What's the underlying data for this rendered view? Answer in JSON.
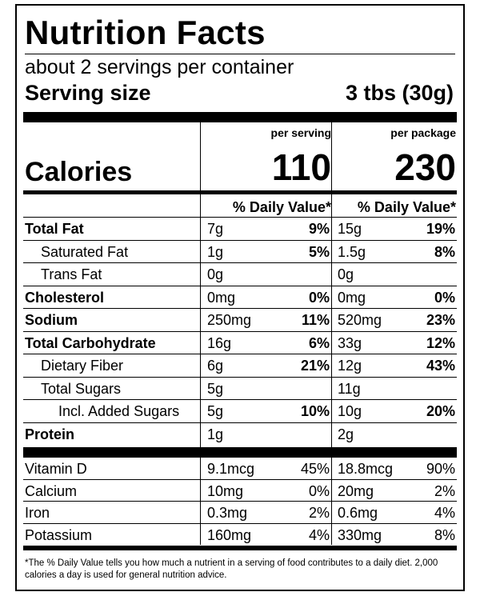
{
  "title": "Nutrition Facts",
  "servings_per_container": "about 2 servings per container",
  "serving_size_label": "Serving size",
  "serving_size_value": "3 tbs (30g)",
  "columns": {
    "per_serving": "per serving",
    "per_package": "per package"
  },
  "calories": {
    "label": "Calories",
    "per_serving": "110",
    "per_package": "230"
  },
  "daily_value_header": "% Daily Value*",
  "nutrients": [
    {
      "name": "Total Fat",
      "bold": true,
      "indent": 0,
      "serving_amount": "7g",
      "serving_pct": "9%",
      "package_amount": "15g",
      "package_pct": "19%"
    },
    {
      "name": "Saturated Fat",
      "bold": false,
      "indent": 1,
      "serving_amount": "1g",
      "serving_pct": "5%",
      "package_amount": "1.5g",
      "package_pct": "8%"
    },
    {
      "name": "Trans Fat",
      "bold": false,
      "indent": 1,
      "serving_amount": "0g",
      "serving_pct": "",
      "package_amount": "0g",
      "package_pct": ""
    },
    {
      "name": "Cholesterol",
      "bold": true,
      "indent": 0,
      "serving_amount": "0mg",
      "serving_pct": "0%",
      "package_amount": "0mg",
      "package_pct": "0%"
    },
    {
      "name": "Sodium",
      "bold": true,
      "indent": 0,
      "serving_amount": "250mg",
      "serving_pct": "11%",
      "package_amount": "520mg",
      "package_pct": "23%"
    },
    {
      "name": "Total Carbohydrate",
      "bold": true,
      "indent": 0,
      "serving_amount": "16g",
      "serving_pct": "6%",
      "package_amount": "33g",
      "package_pct": "12%"
    },
    {
      "name": "Dietary Fiber",
      "bold": false,
      "indent": 1,
      "serving_amount": "6g",
      "serving_pct": "21%",
      "package_amount": "12g",
      "package_pct": "43%"
    },
    {
      "name": "Total Sugars",
      "bold": false,
      "indent": 1,
      "serving_amount": "5g",
      "serving_pct": "",
      "package_amount": "11g",
      "package_pct": ""
    },
    {
      "name": "Incl. Added Sugars",
      "bold": false,
      "indent": 2,
      "serving_amount": "5g",
      "serving_pct": "10%",
      "package_amount": "10g",
      "package_pct": "20%"
    },
    {
      "name": "Protein",
      "bold": true,
      "indent": 0,
      "serving_amount": "1g",
      "serving_pct": "",
      "package_amount": "2g",
      "package_pct": ""
    }
  ],
  "vitamins": [
    {
      "name": "Vitamin D",
      "serving_amount": "9.1mcg",
      "serving_pct": "45%",
      "package_amount": "18.8mcg",
      "package_pct": "90%"
    },
    {
      "name": "Calcium",
      "serving_amount": "10mg",
      "serving_pct": "0%",
      "package_amount": "20mg",
      "package_pct": "2%"
    },
    {
      "name": "Iron",
      "serving_amount": "0.3mg",
      "serving_pct": "2%",
      "package_amount": "0.6mg",
      "package_pct": "4%"
    },
    {
      "name": "Potassium",
      "serving_amount": "160mg",
      "serving_pct": "4%",
      "package_amount": "330mg",
      "package_pct": "8%"
    }
  ],
  "footnote": "*The % Daily Value tells you how much a nutrient in a serving of food contributes to a daily diet. 2,000 calories a day is used for general nutrition advice."
}
